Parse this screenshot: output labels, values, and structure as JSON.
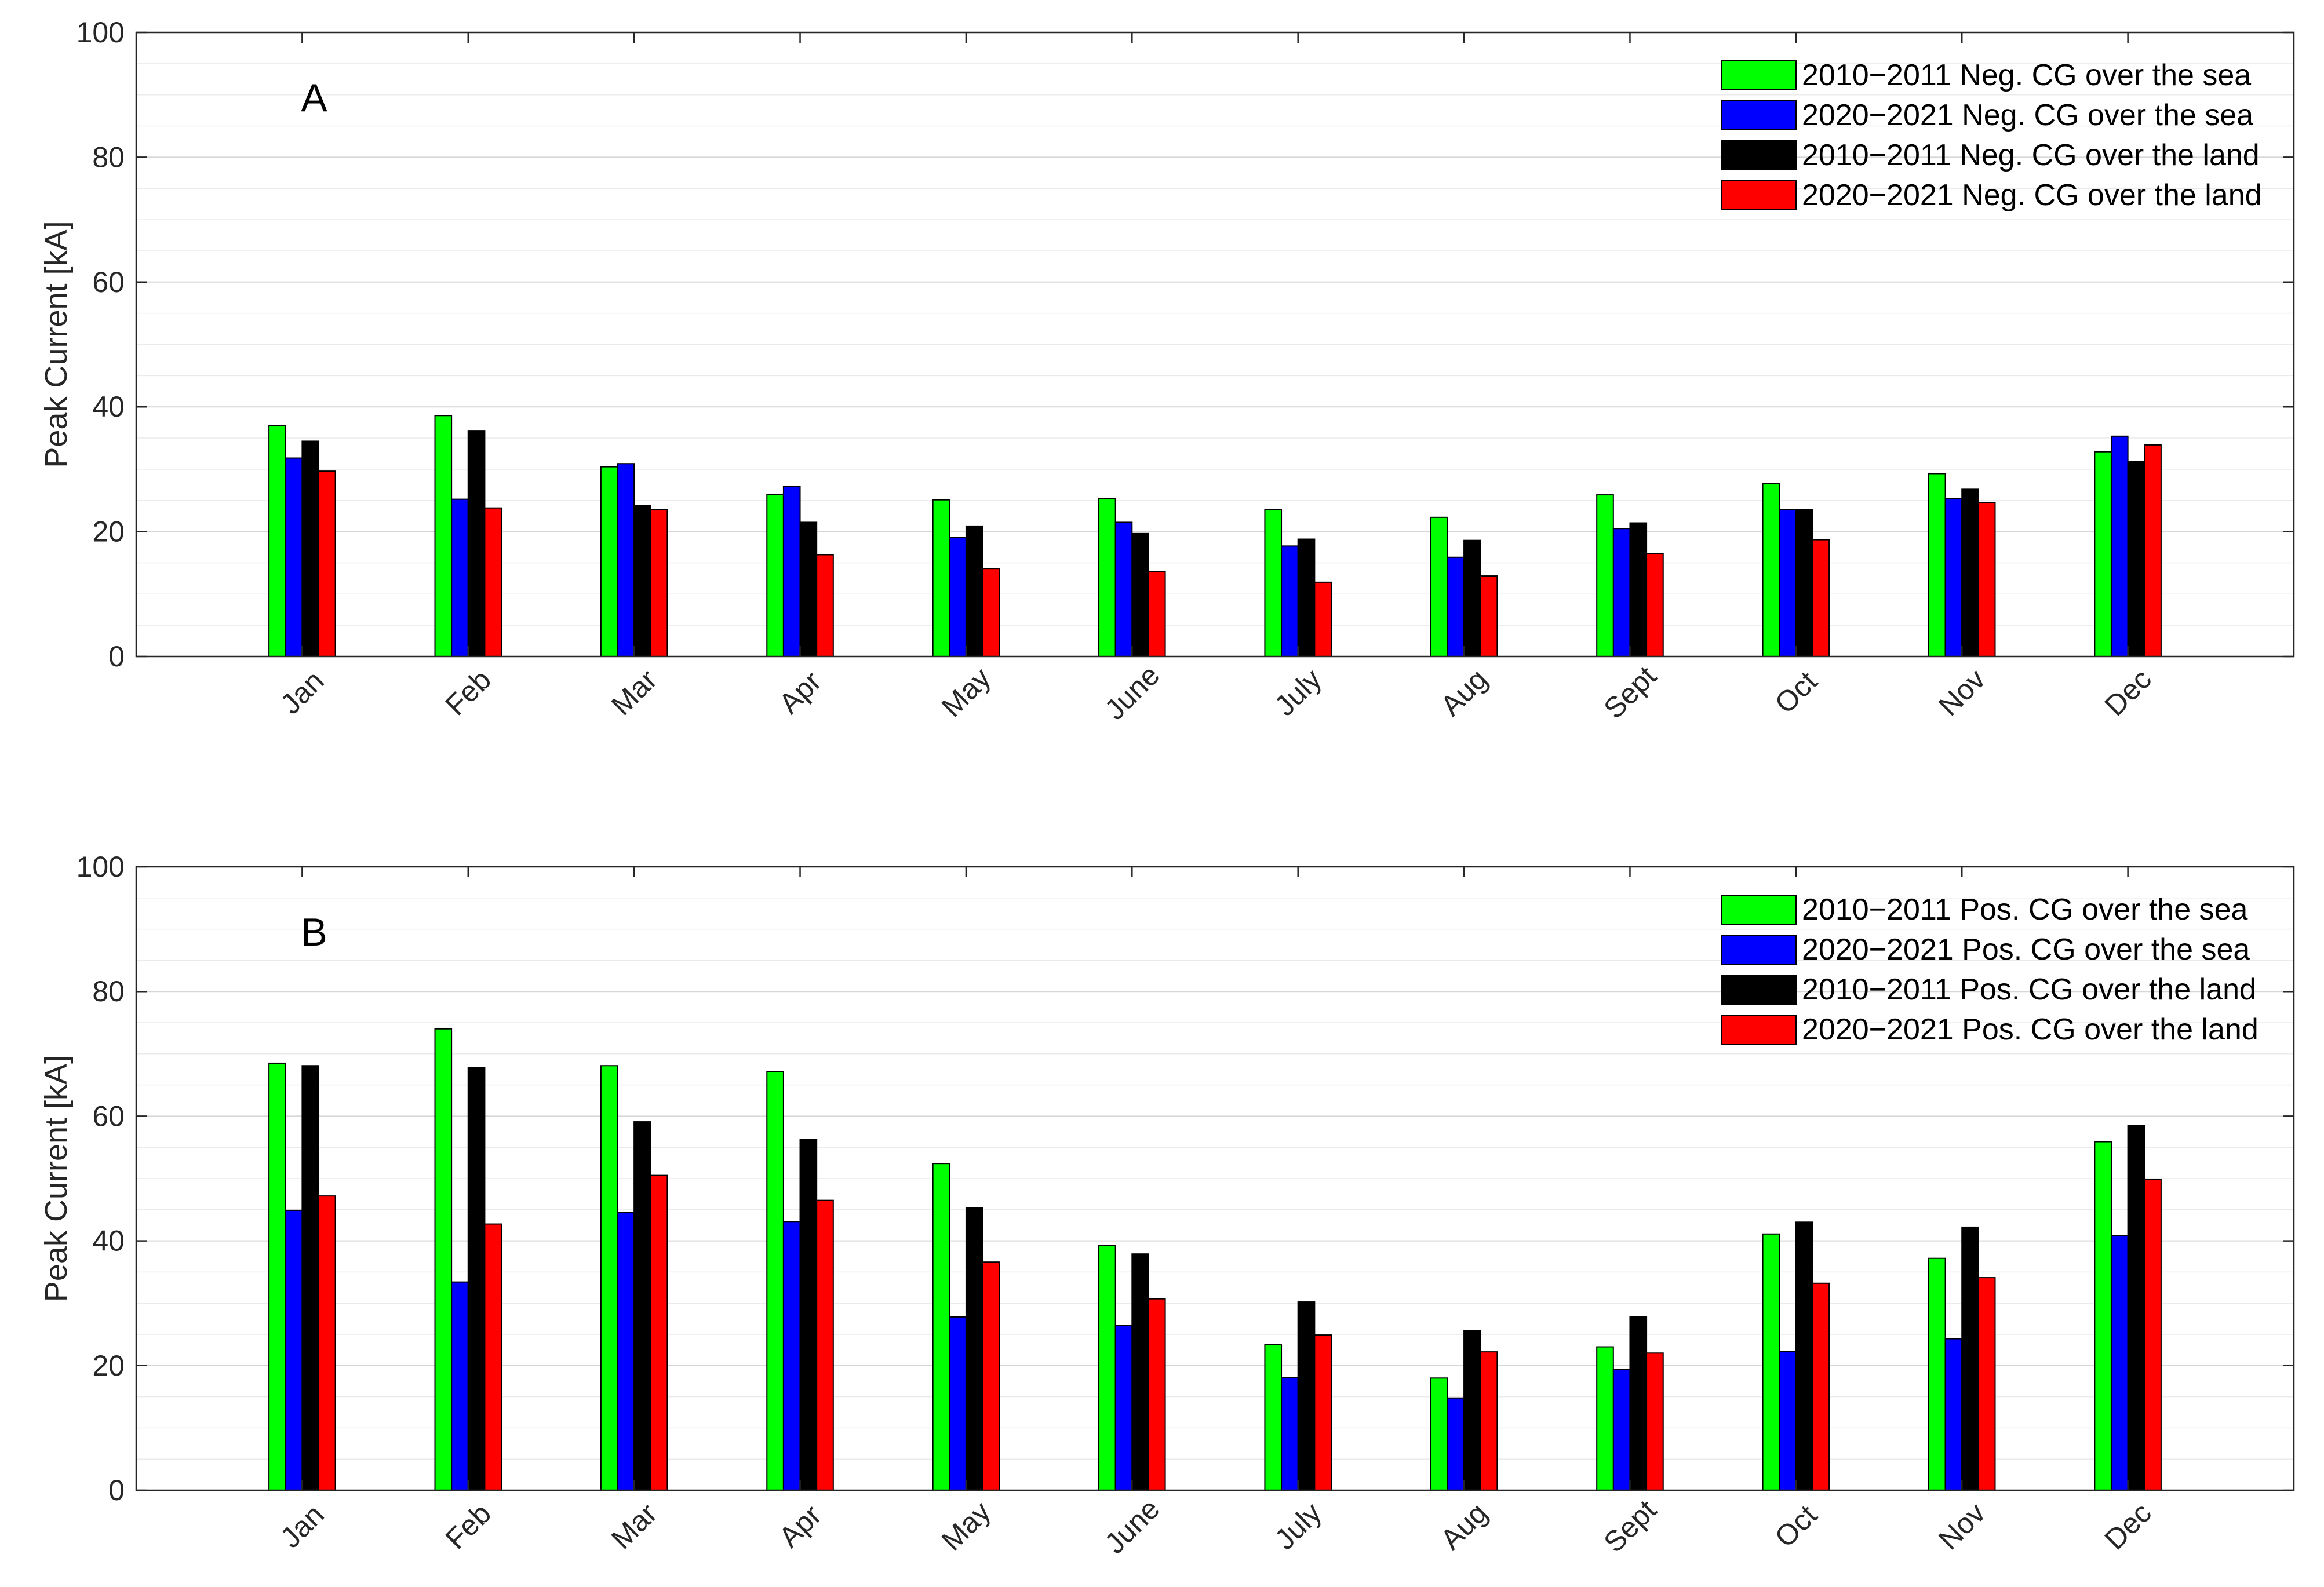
{
  "chart_data": [
    {
      "type": "bar",
      "panel_label": "A",
      "ylabel": "Peak Current [kA]",
      "ylim": [
        0,
        100
      ],
      "yticks": [
        0,
        20,
        40,
        60,
        80,
        100
      ],
      "grid": "on",
      "minor_grid": "on",
      "legend_position": "top-right",
      "categories": [
        "Jan",
        "Feb",
        "Mar",
        "Apr",
        "May",
        "June",
        "July",
        "Aug",
        "Sept",
        "Oct",
        "Nov",
        "Dec"
      ],
      "series": [
        {
          "name": "2010−2011 Neg. CG over the sea",
          "color": "#00ff00",
          "values": [
            37.0,
            38.6,
            30.4,
            26.0,
            25.1,
            25.3,
            23.5,
            22.3,
            25.9,
            27.7,
            29.3,
            32.8
          ]
        },
        {
          "name": "2020−2021 Neg. CG over the sea",
          "color": "#0000ff",
          "values": [
            31.8,
            25.2,
            30.9,
            27.3,
            19.1,
            21.5,
            17.7,
            15.9,
            20.5,
            23.5,
            25.3,
            35.3
          ]
        },
        {
          "name": "2010−2011 Neg. CG over the land",
          "color": "#000000",
          "values": [
            34.5,
            36.2,
            24.2,
            21.5,
            20.9,
            19.7,
            18.8,
            18.6,
            21.4,
            23.5,
            26.8,
            31.2
          ]
        },
        {
          "name": "2020−2021 Neg. CG over the land",
          "color": "#ff0000",
          "values": [
            29.7,
            23.8,
            23.5,
            16.3,
            14.1,
            13.6,
            11.9,
            12.9,
            16.5,
            18.7,
            24.7,
            33.9
          ]
        }
      ]
    },
    {
      "type": "bar",
      "panel_label": "B",
      "ylabel": "Peak Current [kA]",
      "ylim": [
        0,
        100
      ],
      "yticks": [
        0,
        20,
        40,
        60,
        80,
        100
      ],
      "grid": "on",
      "minor_grid": "on",
      "legend_position": "top-right",
      "categories": [
        "Jan",
        "Feb",
        "Mar",
        "Apr",
        "May",
        "June",
        "July",
        "Aug",
        "Sept",
        "Oct",
        "Nov",
        "Dec"
      ],
      "series": [
        {
          "name": "2010−2011 Pos. CG over the sea",
          "color": "#00ff00",
          "values": [
            68.5,
            74.0,
            68.1,
            67.1,
            52.4,
            39.3,
            23.4,
            18.0,
            23.0,
            41.1,
            37.2,
            55.9
          ]
        },
        {
          "name": "2020−2021 Pos. CG over the sea",
          "color": "#0000ff",
          "values": [
            44.9,
            33.4,
            44.6,
            43.1,
            27.8,
            26.4,
            18.1,
            14.8,
            19.4,
            22.3,
            24.3,
            40.8
          ]
        },
        {
          "name": "2010−2011 Pos. CG over the land",
          "color": "#000000",
          "values": [
            68.1,
            67.8,
            59.1,
            56.3,
            45.3,
            37.9,
            30.2,
            25.6,
            27.8,
            43.0,
            42.2,
            58.5
          ]
        },
        {
          "name": "2020−2021 Pos. CG over the land",
          "color": "#ff0000",
          "values": [
            47.2,
            42.7,
            50.5,
            46.5,
            36.6,
            30.7,
            24.9,
            22.2,
            22.0,
            33.2,
            34.1,
            49.9
          ]
        }
      ]
    }
  ]
}
